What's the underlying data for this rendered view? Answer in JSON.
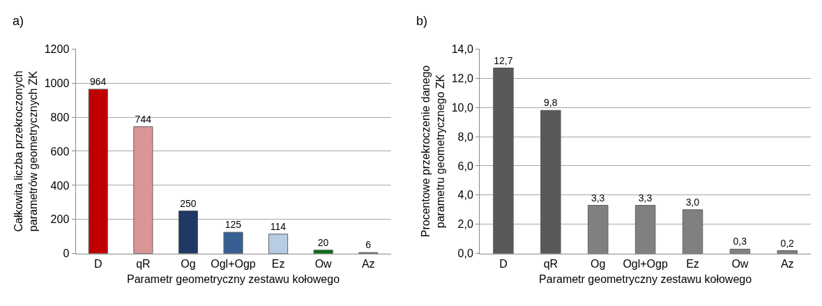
{
  "chart_data": [
    {
      "type": "bar",
      "title": "a)",
      "xlabel": "Parametr geometryczny zestawu kołowego",
      "ylabel": "Całkowita liczba przekroczonych\nparametrów geometrycznych ZK",
      "categories": [
        "D",
        "qR",
        "Og",
        "Ogl+Ogp",
        "Ez",
        "Ow",
        "Az"
      ],
      "values": [
        964,
        744,
        250,
        125,
        114,
        20,
        6
      ],
      "colors": [
        "#c00000",
        "#da9694",
        "#1f3864",
        "#366092",
        "#b8cce4",
        "#00700f",
        "#4f7a4f"
      ],
      "ylim": [
        0,
        1200
      ],
      "yticks": [
        0,
        200,
        400,
        600,
        800,
        1000,
        1200
      ],
      "grid": "y",
      "data_labels": true
    },
    {
      "type": "bar",
      "title": "b)",
      "xlabel": "Parametr geometryczny zestawu kołowego",
      "ylabel": "Procentowe przekroczenie danego\nparametru geometrycznego ZK",
      "categories": [
        "D",
        "qR",
        "Og",
        "Ogl+Ogp",
        "Ez",
        "Ow",
        "Az"
      ],
      "values": [
        12.7,
        9.8,
        3.3,
        3.3,
        3.0,
        0.3,
        0.2
      ],
      "value_labels": [
        "12,7",
        "9,8",
        "3,3",
        "3,3",
        "3,0",
        "0,3",
        "0,2"
      ],
      "colors": [
        "#595959",
        "#595959",
        "#808080",
        "#808080",
        "#808080",
        "#808080",
        "#808080"
      ],
      "ylim": [
        0,
        14
      ],
      "yticks": [
        {
          "value": 0,
          "label": "0,0"
        },
        {
          "value": 2,
          "label": "2,0"
        },
        {
          "value": 4,
          "label": "4,0"
        },
        {
          "value": 6,
          "label": "6,0"
        },
        {
          "value": 8,
          "label": "8,0"
        },
        {
          "value": 10,
          "label": "10,0"
        },
        {
          "value": 12,
          "label": "12,0"
        },
        {
          "value": 14,
          "label": "14,0"
        }
      ],
      "grid": "y"
    }
  ]
}
